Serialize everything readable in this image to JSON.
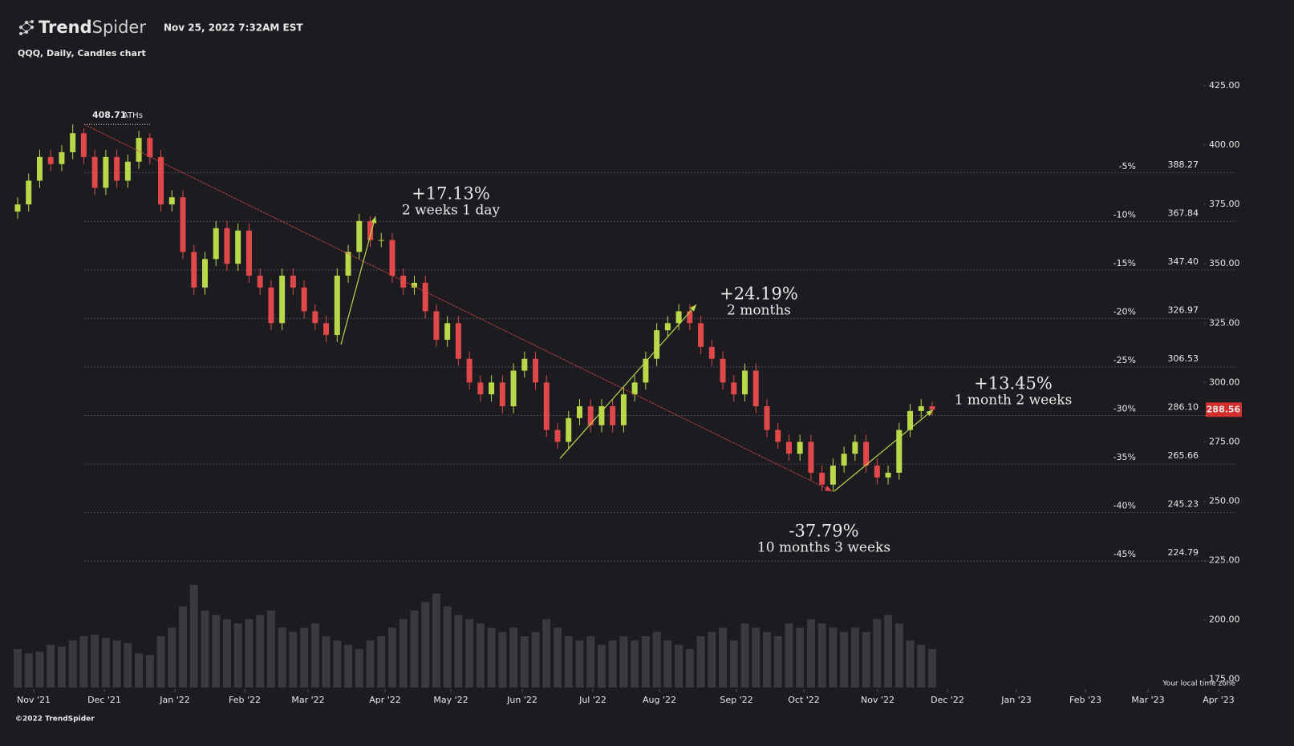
{
  "header": {
    "brand_bold": "Trend",
    "brand_light": "Spider",
    "timestamp": "Nov 25, 2022 7:32AM EST",
    "subtitle": "QQQ, Daily, Candles chart"
  },
  "chart_data": {
    "type": "candlestick",
    "open": [
      372,
      375,
      385,
      395,
      392,
      397,
      405,
      395,
      382,
      395,
      385,
      393,
      403,
      395,
      375,
      378,
      355,
      340,
      352,
      365,
      350,
      364,
      345,
      340,
      325,
      345,
      340,
      330,
      325,
      320,
      345,
      355,
      368,
      360,
      360,
      345,
      340,
      342,
      330,
      318,
      325,
      310,
      300,
      295,
      300,
      290,
      305,
      310,
      300,
      280,
      275,
      285,
      290,
      282,
      290,
      282,
      295,
      300,
      310,
      322,
      325,
      330,
      325,
      315,
      310,
      300,
      295,
      305,
      290,
      280,
      275,
      270,
      275,
      262,
      257,
      265,
      270,
      275,
      265,
      260,
      262,
      280,
      288,
      290
    ],
    "high": [
      378,
      388,
      398,
      398,
      400,
      408.71,
      407,
      398,
      398,
      398,
      396,
      406,
      405,
      398,
      381,
      381,
      358,
      355,
      368,
      368,
      367,
      367,
      348,
      343,
      348,
      348,
      343,
      333,
      328,
      348,
      358,
      371,
      370,
      363,
      363,
      348,
      345,
      345,
      333,
      328,
      328,
      313,
      303,
      303,
      303,
      308,
      313,
      313,
      303,
      283,
      288,
      293,
      293,
      293,
      293,
      298,
      303,
      313,
      325,
      328,
      333,
      333,
      328,
      318,
      313,
      303,
      308,
      308,
      293,
      283,
      278,
      278,
      278,
      265,
      268,
      273,
      278,
      278,
      268,
      265,
      283,
      291,
      293,
      292
    ],
    "low": [
      369,
      372,
      382,
      389,
      389,
      394,
      392,
      379,
      379,
      382,
      382,
      390,
      392,
      372,
      372,
      352,
      337,
      337,
      349,
      347,
      347,
      342,
      337,
      322,
      322,
      337,
      327,
      322,
      317,
      317,
      342,
      352,
      357,
      357,
      342,
      337,
      337,
      327,
      315,
      315,
      307,
      297,
      292,
      292,
      287,
      287,
      302,
      297,
      277,
      272,
      272,
      282,
      279,
      279,
      279,
      279,
      292,
      297,
      307,
      319,
      322,
      322,
      312,
      307,
      297,
      292,
      292,
      287,
      277,
      272,
      267,
      267,
      259,
      254.26,
      254,
      262,
      267,
      262,
      257,
      257,
      259,
      277,
      285,
      286
    ],
    "close": [
      375,
      385,
      395,
      392,
      397,
      405,
      395,
      382,
      395,
      385,
      393,
      403,
      395,
      375,
      378,
      355,
      340,
      352,
      365,
      350,
      364,
      345,
      340,
      325,
      345,
      340,
      330,
      325,
      320,
      345,
      355,
      368,
      360,
      360,
      345,
      340,
      342,
      330,
      318,
      325,
      310,
      300,
      295,
      300,
      290,
      305,
      310,
      300,
      280,
      275,
      285,
      290,
      282,
      290,
      282,
      295,
      300,
      310,
      322,
      325,
      330,
      325,
      315,
      310,
      300,
      295,
      305,
      290,
      280,
      275,
      270,
      275,
      262,
      257,
      265,
      270,
      275,
      265,
      260,
      262,
      280,
      288,
      290,
      288.56
    ],
    "volume": [
      45,
      40,
      42,
      50,
      48,
      55,
      60,
      62,
      58,
      55,
      52,
      40,
      38,
      60,
      70,
      95,
      120,
      90,
      85,
      80,
      75,
      80,
      85,
      90,
      70,
      65,
      70,
      75,
      60,
      55,
      50,
      45,
      55,
      60,
      70,
      80,
      90,
      100,
      110,
      95,
      85,
      80,
      75,
      70,
      65,
      70,
      60,
      65,
      80,
      70,
      60,
      55,
      60,
      50,
      55,
      60,
      55,
      60,
      65,
      55,
      50,
      45,
      60,
      65,
      70,
      55,
      75,
      70,
      65,
      60,
      75,
      70,
      80,
      75,
      70,
      65,
      70,
      65,
      80,
      85,
      75,
      55,
      50,
      45
    ],
    "up_color": "#b9d84a",
    "down_color": "#e0484a",
    "volume_color": "#3a393e",
    "ylim": [
      171,
      437
    ],
    "yticks": [
      {
        "value": 175,
        "label": "175.00"
      },
      {
        "value": 200,
        "label": "200.00"
      },
      {
        "value": 225,
        "label": "225.00"
      },
      {
        "value": 250,
        "label": "250.00"
      },
      {
        "value": 275,
        "label": "275.00"
      },
      {
        "value": 300,
        "label": "300.00"
      },
      {
        "value": 325,
        "label": "325.00"
      },
      {
        "value": 350,
        "label": "350.00"
      },
      {
        "value": 375,
        "label": "375.00"
      },
      {
        "value": 400,
        "label": "400.00"
      },
      {
        "value": 425,
        "label": "425.00"
      }
    ],
    "x_labels": [
      "Nov '21",
      "Dec '21",
      "Jan '22",
      "Feb '22",
      "Mar '22",
      "Apr '22",
      "May '22",
      "Jun '22",
      "Jul '22",
      "Aug '22",
      "Sep '22",
      "Oct '22",
      "Nov '22",
      "Dec '22",
      "Jan '23",
      "Feb '23",
      "Mar '23",
      "Apr '23"
    ],
    "levels": [
      {
        "percent": "-5%",
        "price": 388.27
      },
      {
        "percent": "-10%",
        "price": 367.84
      },
      {
        "percent": "-15%",
        "price": {
          "value": 347.4,
          "label": "347.40"
        }
      },
      {
        "percent": "-20%",
        "price": 326.97
      },
      {
        "percent": "-25%",
        "price": 306.53
      },
      {
        "percent": "-30%",
        "price": {
          "value": 286.1,
          "label": "286.10"
        }
      },
      {
        "percent": "-35%",
        "price": 265.66
      },
      {
        "percent": "-40%",
        "price": 245.23
      },
      {
        "percent": "-45%",
        "price": 224.79
      }
    ],
    "ath": {
      "value": 408.71,
      "label": "ATHs"
    },
    "last_price": 288.56,
    "measures": [
      {
        "change": "-37.79%",
        "duration": "10 months 3 weeks",
        "start": 408.71,
        "end": 254.26,
        "color": "#e0484a"
      },
      {
        "change": "+17.13%",
        "duration": "2 weeks 1 day",
        "start": 316,
        "end": 370,
        "color": "#b9d84a"
      },
      {
        "change": "+24.19%",
        "duration": "2 months",
        "start": 268,
        "end": 332.8,
        "color": "#b9d84a"
      },
      {
        "change": "+13.45%",
        "duration": "1 month 2 weeks",
        "start": 254.26,
        "end": 288.5,
        "color": "#b9d84a"
      }
    ]
  },
  "footer": {
    "copyright": "©2022 TrendSpider",
    "timezone": "Your local time zone"
  }
}
